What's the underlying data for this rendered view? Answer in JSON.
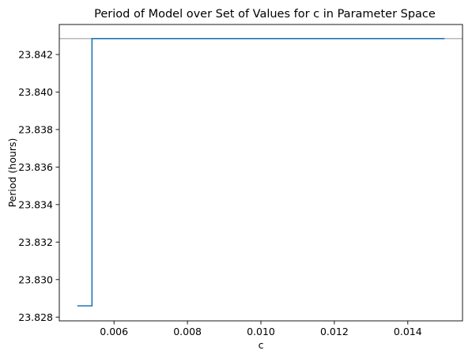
{
  "chart_data": {
    "type": "line",
    "title": "Period of Model over Set of Values for c in Parameter Space",
    "xlabel": "c",
    "ylabel": "Period (hours)",
    "xlim": [
      0.00451,
      0.01549
    ],
    "ylim": [
      23.8278,
      23.8436
    ],
    "xticks": [
      0.006,
      0.008,
      0.01,
      0.012,
      0.014
    ],
    "xtick_labels": [
      "0.006",
      "0.008",
      "0.010",
      "0.012",
      "0.014"
    ],
    "yticks": [
      23.828,
      23.83,
      23.832,
      23.834,
      23.836,
      23.838,
      23.84,
      23.842
    ],
    "ytick_labels": [
      "23.828",
      "23.830",
      "23.832",
      "23.834",
      "23.836",
      "23.838",
      "23.840",
      "23.842"
    ],
    "grid": false,
    "series": [
      {
        "color": "#1f77b4",
        "x": [
          0.005,
          0.0054,
          0.0054,
          0.015
        ],
        "y": [
          23.8286,
          23.8286,
          23.84285,
          23.84285
        ]
      }
    ],
    "reference_lines": [
      {
        "orientation": "horizontal",
        "y": 23.84285,
        "color": "#b0b0b0"
      }
    ]
  }
}
